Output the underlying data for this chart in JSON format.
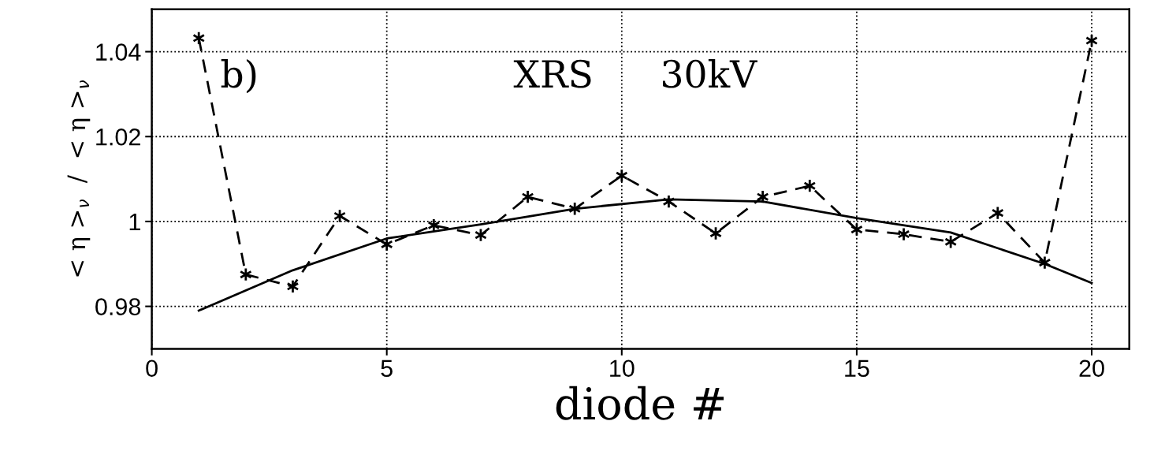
{
  "chart_data": {
    "type": "line",
    "xlabel": "diode #",
    "ylabel": "< η >$_{ν}$  /  < η >$_{ν}$",
    "annotations": [
      "b)",
      "XRS",
      "30kV"
    ],
    "xlim": [
      0,
      20.8
    ],
    "ylim": [
      0.97,
      1.05
    ],
    "xticks": [
      0,
      5,
      10,
      15,
      20
    ],
    "yticks": [
      0.98,
      1,
      1.02,
      1.04
    ],
    "grid": true,
    "series": [
      {
        "color": "#000000",
        "marker": "cross",
        "line_style": "dashed",
        "x": [
          1,
          2,
          3,
          4,
          5,
          6,
          7,
          8,
          9,
          10,
          11,
          12,
          13,
          14,
          15,
          16,
          17,
          18,
          19,
          20
        ],
        "values": [
          1.0432,
          0.9875,
          0.9847,
          1.0013,
          0.9946,
          0.9991,
          0.9968,
          1.0058,
          1.003,
          1.0108,
          1.0047,
          0.9972,
          1.0058,
          1.0084,
          0.9981,
          0.997,
          0.9952,
          1.002,
          0.9903,
          1.0426
        ]
      },
      {
        "color": "#000000",
        "marker": "none",
        "line_style": "solid",
        "x": [
          1,
          3,
          5,
          7,
          9,
          11,
          13,
          15,
          17,
          19,
          20
        ],
        "values": [
          0.979,
          0.9885,
          0.996,
          0.9993,
          1.003,
          1.0052,
          1.0047,
          1.0008,
          0.9974,
          0.99,
          0.9855
        ]
      }
    ]
  }
}
